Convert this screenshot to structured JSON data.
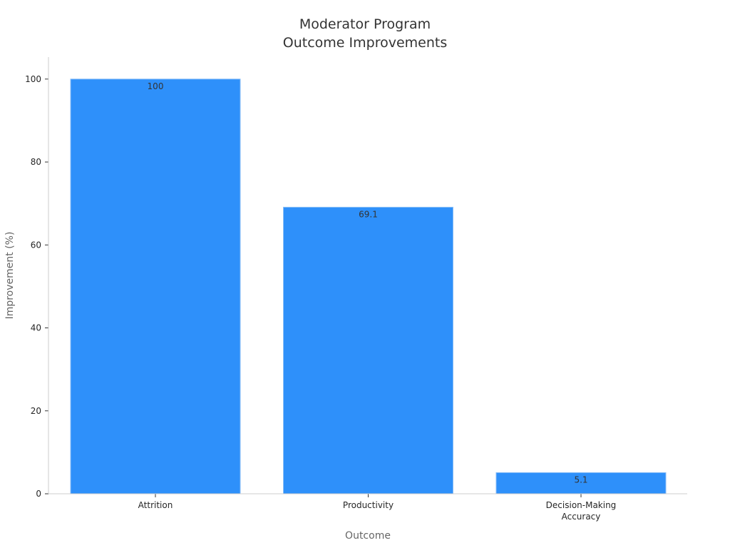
{
  "chart_data": {
    "type": "bar",
    "title_lines": [
      "Moderator Program",
      "Outcome Improvements"
    ],
    "xlabel": "Outcome",
    "ylabel": "Improvement (%)",
    "categories": [
      [
        "Attrition"
      ],
      [
        "Productivity"
      ],
      [
        "Decision-Making",
        "Accuracy"
      ]
    ],
    "values": [
      100,
      69.1,
      5.1
    ],
    "value_labels": [
      "100",
      "69.1",
      "5.1"
    ],
    "yticks": [
      0,
      20,
      40,
      60,
      80,
      100
    ],
    "ylim": [
      0,
      105.3
    ],
    "grid": false,
    "bar_color": "#2e90fa",
    "bar_edge_color": "#88bdf7"
  }
}
